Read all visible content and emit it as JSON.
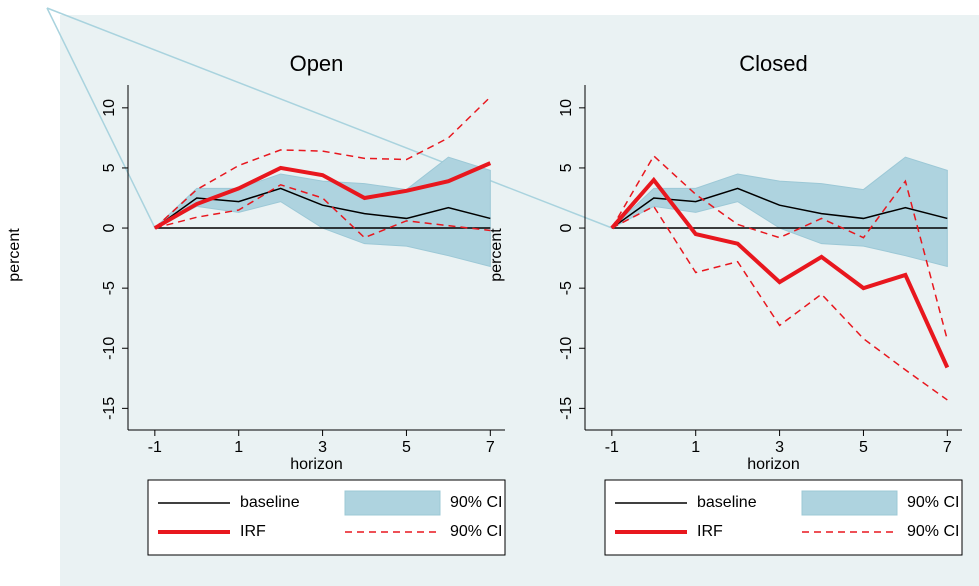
{
  "chart_data": [
    {
      "type": "line",
      "title": "Open",
      "xlabel": "horizon",
      "ylabel": "percent",
      "x": [
        -1,
        0,
        1,
        2,
        3,
        4,
        5,
        6,
        7
      ],
      "xlim": [
        -1.64,
        7.35
      ],
      "xticks": [
        -1,
        1,
        3,
        5,
        7
      ],
      "ylim": [
        -16.8,
        11.9
      ],
      "yticks": [
        -15,
        -10,
        -5,
        0,
        5,
        10
      ],
      "zero_line": true,
      "series": [
        {
          "name": "baseline",
          "color": "#000000",
          "values": [
            0,
            2.5,
            2.2,
            3.3,
            1.9,
            1.2,
            0.8,
            1.7,
            0.8
          ]
        },
        {
          "name": "90% CI",
          "color": "#aed3df",
          "lower": [
            0,
            1.8,
            1.3,
            2.2,
            0,
            -1.3,
            -1.5,
            -2.3,
            -3.2
          ],
          "upper": [
            0,
            3.3,
            3.3,
            4.5,
            3.9,
            3.7,
            3.2,
            5.9,
            4.8
          ]
        },
        {
          "name": "IRF",
          "color": "#e8171e",
          "values": [
            0,
            2.0,
            3.3,
            5.0,
            4.4,
            2.5,
            3.1,
            3.9,
            5.4
          ]
        },
        {
          "name": "90% CI",
          "color": "#e8171e",
          "dashed": true,
          "lower": [
            0,
            0.9,
            1.5,
            3.6,
            2.5,
            -0.8,
            0.6,
            0.2,
            -0.2
          ],
          "upper": [
            0,
            3.2,
            5.2,
            6.5,
            6.4,
            5.8,
            5.7,
            7.5,
            10.9
          ]
        }
      ]
    },
    {
      "type": "line",
      "title": "Closed",
      "xlabel": "horizon",
      "ylabel": "percent",
      "x": [
        -1,
        0,
        1,
        2,
        3,
        4,
        5,
        6,
        7
      ],
      "xlim": [
        -1.64,
        7.35
      ],
      "xticks": [
        -1,
        1,
        3,
        5,
        7
      ],
      "ylim": [
        -16.8,
        11.9
      ],
      "yticks": [
        -15,
        -10,
        -5,
        0,
        5,
        10
      ],
      "zero_line": true,
      "series": [
        {
          "name": "baseline",
          "color": "#000000",
          "values": [
            0,
            2.5,
            2.2,
            3.3,
            1.9,
            1.2,
            0.8,
            1.7,
            0.8
          ]
        },
        {
          "name": "90% CI",
          "color": "#aed3df",
          "lower": [
            0,
            1.8,
            1.3,
            2.2,
            0,
            -1.3,
            -1.5,
            -2.3,
            -3.2
          ],
          "upper": [
            0,
            3.3,
            3.3,
            4.5,
            3.9,
            3.7,
            3.2,
            5.9,
            4.8
          ]
        },
        {
          "name": "IRF",
          "color": "#e8171e",
          "values": [
            0,
            4.0,
            -0.5,
            -1.3,
            -4.5,
            -2.4,
            -5.0,
            -3.9,
            -11.6
          ]
        },
        {
          "name": "90% CI",
          "color": "#e8171e",
          "dashed": true,
          "lower": [
            0,
            1.8,
            -3.7,
            -2.8,
            -8.1,
            -5.5,
            -9.2,
            -11.8,
            -14.3
          ],
          "upper": [
            0,
            6.0,
            2.8,
            0.3,
            -0.8,
            0.8,
            -0.8,
            3.9,
            -9.3
          ]
        }
      ]
    }
  ]
}
